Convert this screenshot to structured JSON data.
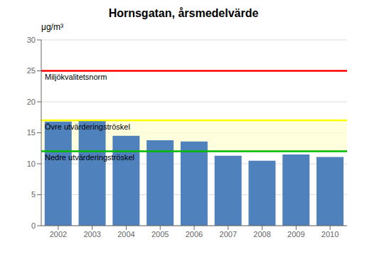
{
  "chart_data": {
    "type": "bar",
    "title": "Hornsgatan, årsmedelvärde",
    "y_label": "μg/m³",
    "categories": [
      "2002",
      "2003",
      "2004",
      "2005",
      "2006",
      "2007",
      "2008",
      "2009",
      "2010"
    ],
    "values": [
      16.8,
      17.0,
      14.5,
      13.8,
      13.6,
      11.3,
      10.5,
      11.5,
      11.1
    ],
    "color": "#4F81BD",
    "ylim": [
      0,
      30
    ],
    "yticks": [
      0,
      5,
      10,
      15,
      20,
      25,
      30
    ],
    "grid": true,
    "reference_lines": [
      {
        "value": 25,
        "label": "Miljökvalitetsnorm",
        "color": "#FF0000"
      },
      {
        "value": 17,
        "label": "Övre utvärderingströskel",
        "color": "#FFFF00"
      },
      {
        "value": 12,
        "label": "Nedre utvärderingströskel",
        "color": "#00BB00"
      }
    ],
    "band": {
      "from": 12,
      "to": 17,
      "color": "#FFFFD0"
    }
  }
}
